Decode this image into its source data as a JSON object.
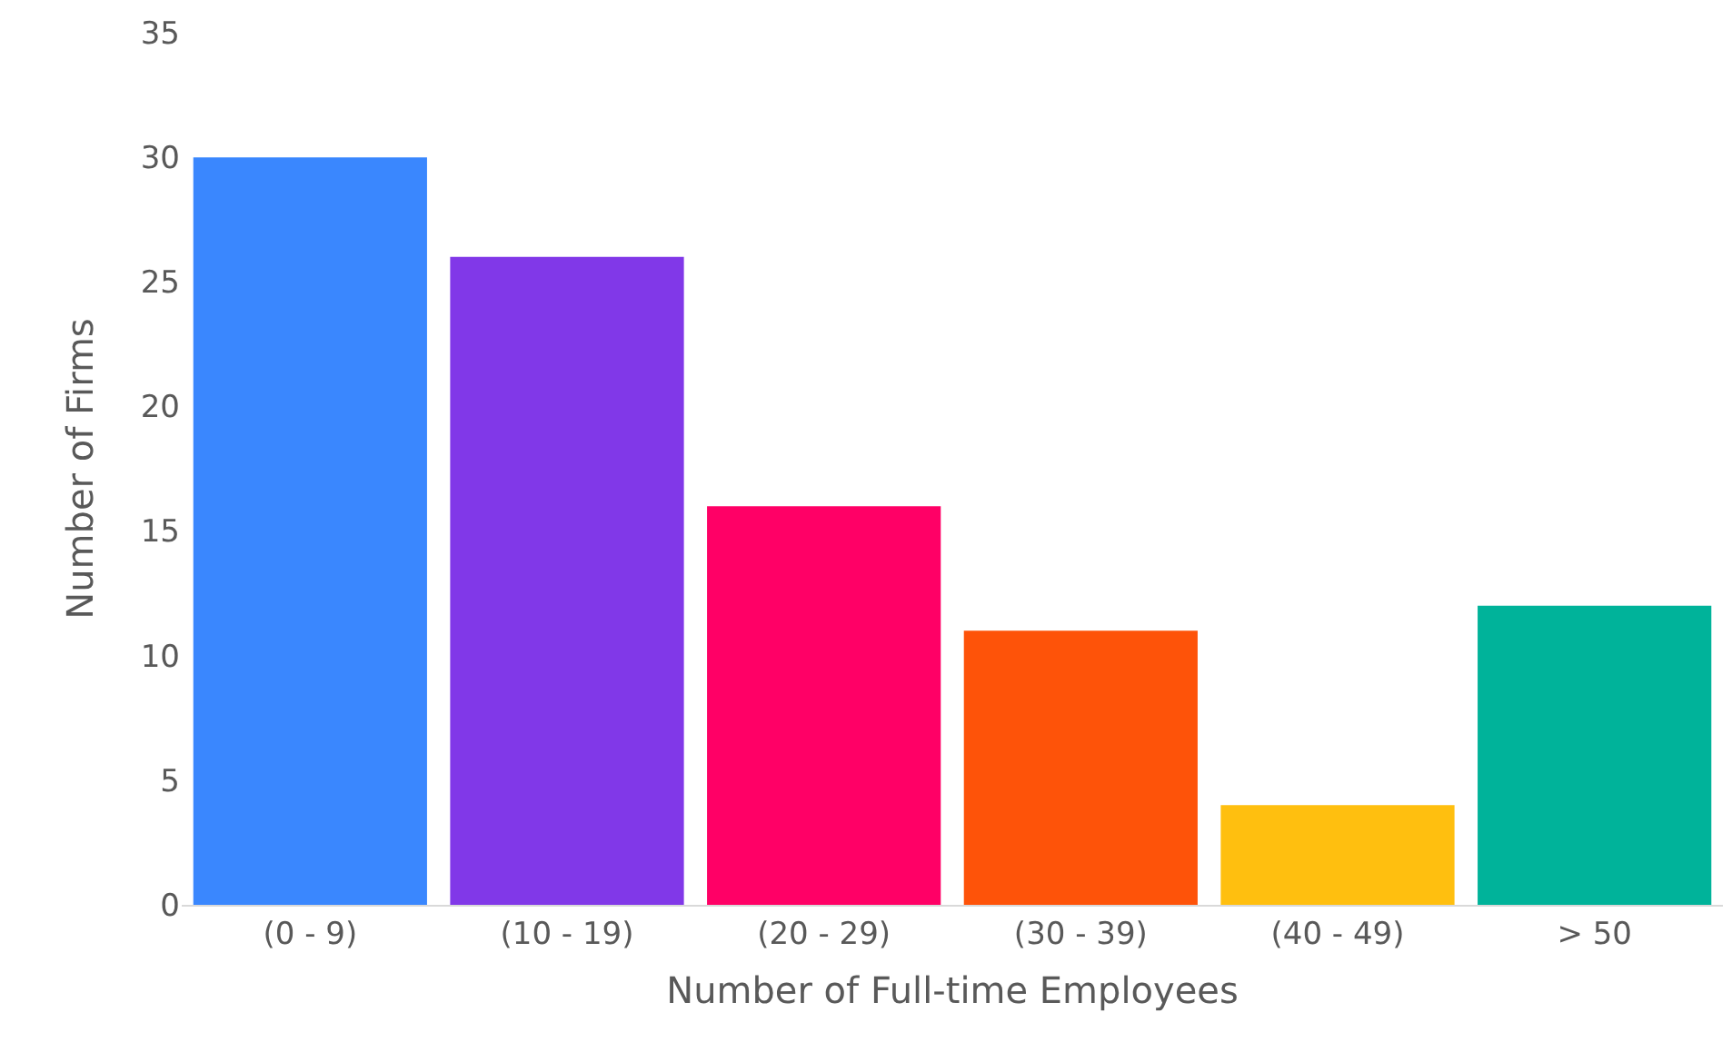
{
  "chart_data": {
    "type": "bar",
    "xlabel": "Number of Full-time Employees",
    "ylabel": "Number of Firms",
    "categories": [
      "(0 - 9)",
      "(10 - 19)",
      "(20 - 29)",
      "(30 - 39)",
      "(40 - 49)",
      "> 50"
    ],
    "values": [
      30,
      26,
      16,
      11,
      4,
      12
    ],
    "colors": [
      "#3a87fe",
      "#8138e8",
      "#ff0066",
      "#fe5309",
      "#ffbf0f",
      "#00b39a"
    ],
    "ylim": [
      0,
      35
    ],
    "yticks": [
      0,
      5,
      10,
      15,
      20,
      25,
      30,
      35
    ],
    "grid": false
  }
}
